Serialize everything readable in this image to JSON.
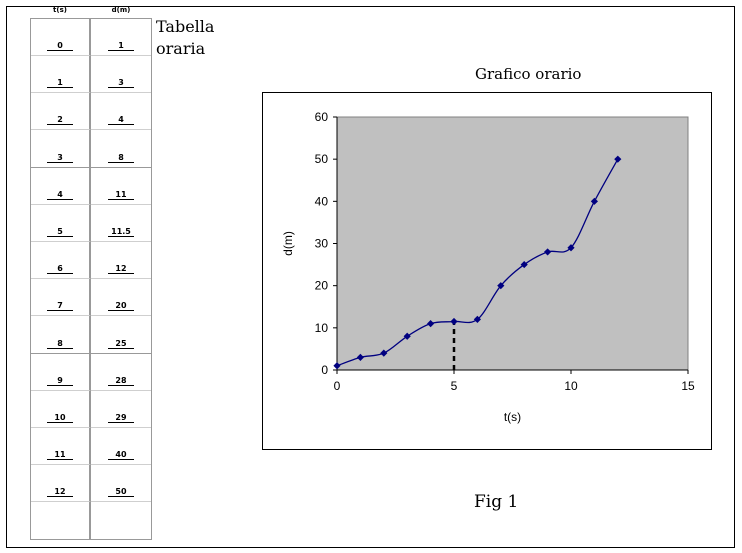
{
  "table": {
    "headers": [
      "t(s)",
      "d(m)"
    ],
    "title": "Tabella oraria",
    "rows": [
      [
        "0",
        "1"
      ],
      [
        "1",
        "3"
      ],
      [
        "2",
        "4"
      ],
      [
        "3",
        "8"
      ],
      [
        "4",
        "11"
      ],
      [
        "5",
        "11.5"
      ],
      [
        "6",
        "12"
      ],
      [
        "7",
        "20"
      ],
      [
        "8",
        "25"
      ],
      [
        "9",
        "28"
      ],
      [
        "10",
        "29"
      ],
      [
        "11",
        "40"
      ],
      [
        "12",
        "50"
      ],
      [
        "",
        ""
      ]
    ]
  },
  "figure_caption": "Fig 1",
  "chart_data": {
    "type": "line",
    "title": "Grafico orario",
    "xlabel": "t(s)",
    "ylabel": "d(m)",
    "xlim": [
      0,
      15
    ],
    "ylim": [
      0,
      60
    ],
    "xticks": [
      0,
      5,
      10,
      15
    ],
    "yticks": [
      0,
      10,
      20,
      30,
      40,
      50,
      60
    ],
    "grid": false,
    "legend": "none",
    "plot_background": "#c0c0c0",
    "series": [
      {
        "color": "#000080",
        "x": [
          0,
          1,
          2,
          3,
          4,
          5,
          6,
          7,
          8,
          9,
          10,
          11,
          12
        ],
        "y": [
          1,
          3,
          4,
          8,
          11,
          11.5,
          12,
          20,
          25,
          28,
          29,
          40,
          50
        ]
      }
    ],
    "annotations": [
      {
        "type": "dashed-vertical",
        "x": 5,
        "y_from": 0,
        "y_to": 11.5
      }
    ]
  }
}
